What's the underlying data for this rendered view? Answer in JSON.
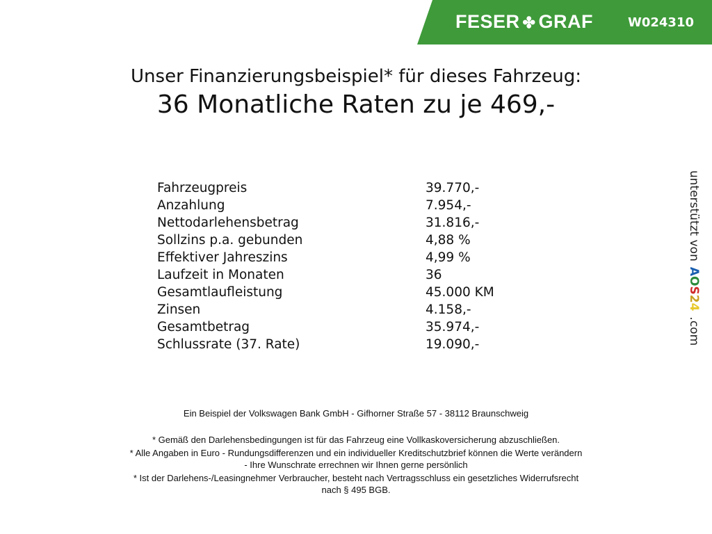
{
  "header": {
    "brand_left": "FESER",
    "brand_right": "GRAF",
    "code": "W024310",
    "color": "#3f9a3a"
  },
  "title": {
    "line1": "Unser Finanzierungsbeispiel* für dieses Fahrzeug:",
    "line2": "36 Monatliche Raten zu je 469,-"
  },
  "rows": [
    {
      "label": "Fahrzeugpreis",
      "value": "39.770,-"
    },
    {
      "label": "Anzahlung",
      "value": "7.954,-"
    },
    {
      "label": "Nettodarlehensbetrag",
      "value": "31.816,-"
    },
    {
      "label": "Sollzins p.a. gebunden",
      "value": "4,88 %"
    },
    {
      "label": "Effektiver Jahreszins",
      "value": "4,99 %"
    },
    {
      "label": "Laufzeit in Monaten",
      "value": "36"
    },
    {
      "label": "Gesamtlaufleistung",
      "value": "45.000 KM"
    },
    {
      "label": "Zinsen",
      "value": "4.158,-"
    },
    {
      "label": "Gesamtbetrag",
      "value": "35.974,-"
    },
    {
      "label": "Schlussrate (37. Rate)",
      "value": "19.090,-"
    }
  ],
  "side": {
    "text": "unterstützt von",
    "logo": "AOS24",
    "suffix": ".com"
  },
  "footer": {
    "bank": "Ein Beispiel der Volkswagen Bank GmbH - Gifhorner Straße 57 - 38112 Braunschweig",
    "note1": "* Gemäß den Darlehensbedingungen ist für das Fahrzeug eine Vollkaskoversicherung abzuschließen.",
    "note2a": "* Alle Angaben in Euro - Rundungsdifferenzen und ein individueller Kreditschutzbrief können die Werte verändern",
    "note2b": "- Ihre Wunschrate errechnen wir Ihnen gerne persönlich",
    "note3a": "* Ist der Darlehens-/Leasingnehmer Verbraucher, besteht nach Vertragsschluss ein gesetzliches Widerrufsrecht",
    "note3b": "nach § 495 BGB."
  }
}
